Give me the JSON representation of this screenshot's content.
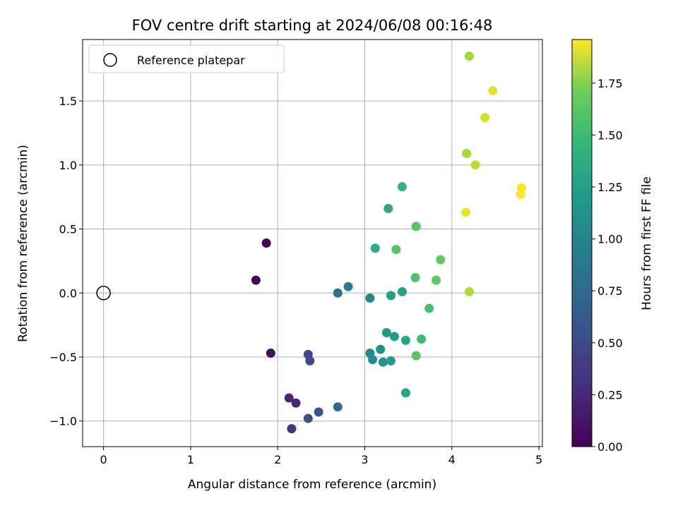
{
  "chart_data": {
    "type": "scatter",
    "title": "FOV centre drift starting at 2024/06/08 00:16:48",
    "xlabel": "Angular distance from reference (arcmin)",
    "ylabel": "Rotation from reference (arcmin)",
    "xlim": [
      -0.24,
      5.04
    ],
    "ylim": [
      -1.2,
      1.98
    ],
    "xticks": [
      0,
      1,
      2,
      3,
      4,
      5
    ],
    "xtick_labels": [
      "0",
      "1",
      "2",
      "3",
      "4",
      "5"
    ],
    "yticks": [
      -1.0,
      -0.5,
      0.0,
      0.5,
      1.0,
      1.5
    ],
    "ytick_labels": [
      "−1.0",
      "−0.5",
      "0.0",
      "0.5",
      "1.0",
      "1.5"
    ],
    "grid": true,
    "legend": {
      "position": "top-left",
      "entries": [
        {
          "label": "Reference platepar",
          "marker": "open-circle"
        }
      ]
    },
    "reference_point": {
      "x": 0,
      "y": 0
    },
    "colorbar": {
      "label": "Hours from first FF file",
      "colormap": "viridis",
      "range": [
        0,
        1.96
      ],
      "ticks": [
        0,
        0.25,
        0.5,
        0.75,
        1.0,
        1.25,
        1.5,
        1.75
      ],
      "tick_labels": [
        "0.00",
        "0.25",
        "0.50",
        "0.75",
        "1.00",
        "1.25",
        "1.50",
        "1.75"
      ]
    },
    "points": [
      {
        "x": 1.87,
        "y": 0.39,
        "c": 0.02
      },
      {
        "x": 1.75,
        "y": 0.1,
        "c": 0.05
      },
      {
        "x": 1.92,
        "y": -0.47,
        "c": 0.08
      },
      {
        "x": 2.13,
        "y": -0.82,
        "c": 0.2
      },
      {
        "x": 2.21,
        "y": -0.86,
        "c": 0.22
      },
      {
        "x": 2.16,
        "y": -1.06,
        "c": 0.3
      },
      {
        "x": 2.35,
        "y": -0.48,
        "c": 0.42
      },
      {
        "x": 2.37,
        "y": -0.53,
        "c": 0.45
      },
      {
        "x": 2.35,
        "y": -0.98,
        "c": 0.48
      },
      {
        "x": 2.47,
        "y": -0.93,
        "c": 0.5
      },
      {
        "x": 2.69,
        "y": -0.89,
        "c": 0.68
      },
      {
        "x": 2.69,
        "y": 0.0,
        "c": 0.72
      },
      {
        "x": 2.81,
        "y": 0.05,
        "c": 0.82
      },
      {
        "x": 3.06,
        "y": -0.47,
        "c": 0.9
      },
      {
        "x": 3.06,
        "y": -0.04,
        "c": 0.92
      },
      {
        "x": 3.09,
        "y": -0.52,
        "c": 0.95
      },
      {
        "x": 3.18,
        "y": -0.44,
        "c": 1.0
      },
      {
        "x": 3.21,
        "y": -0.54,
        "c": 1.03
      },
      {
        "x": 3.25,
        "y": -0.31,
        "c": 1.06
      },
      {
        "x": 3.3,
        "y": -0.53,
        "c": 1.08
      },
      {
        "x": 3.34,
        "y": -0.34,
        "c": 1.1
      },
      {
        "x": 3.3,
        "y": -0.02,
        "c": 1.12
      },
      {
        "x": 3.43,
        "y": 0.01,
        "c": 1.14
      },
      {
        "x": 3.47,
        "y": -0.37,
        "c": 1.16
      },
      {
        "x": 3.47,
        "y": -0.78,
        "c": 1.18
      },
      {
        "x": 3.27,
        "y": 0.66,
        "c": 1.19
      },
      {
        "x": 3.12,
        "y": 0.35,
        "c": 1.22
      },
      {
        "x": 3.43,
        "y": 0.83,
        "c": 1.28
      },
      {
        "x": 3.65,
        "y": -0.36,
        "c": 1.35
      },
      {
        "x": 3.74,
        "y": -0.12,
        "c": 1.38
      },
      {
        "x": 3.58,
        "y": 0.12,
        "c": 1.4
      },
      {
        "x": 3.36,
        "y": 0.34,
        "c": 1.42
      },
      {
        "x": 3.59,
        "y": -0.49,
        "c": 1.44
      },
      {
        "x": 3.59,
        "y": 0.52,
        "c": 1.44
      },
      {
        "x": 3.82,
        "y": 0.1,
        "c": 1.46
      },
      {
        "x": 3.87,
        "y": 0.26,
        "c": 1.48
      },
      {
        "x": 4.2,
        "y": 1.85,
        "c": 1.68
      },
      {
        "x": 4.17,
        "y": 1.09,
        "c": 1.7
      },
      {
        "x": 4.2,
        "y": 0.01,
        "c": 1.72
      },
      {
        "x": 4.27,
        "y": 1.0,
        "c": 1.76
      },
      {
        "x": 4.38,
        "y": 1.37,
        "c": 1.84
      },
      {
        "x": 4.47,
        "y": 1.58,
        "c": 1.88
      },
      {
        "x": 4.16,
        "y": 0.63,
        "c": 1.9
      },
      {
        "x": 4.8,
        "y": 0.82,
        "c": 1.93
      },
      {
        "x": 4.79,
        "y": 0.77,
        "c": 1.95
      }
    ]
  }
}
